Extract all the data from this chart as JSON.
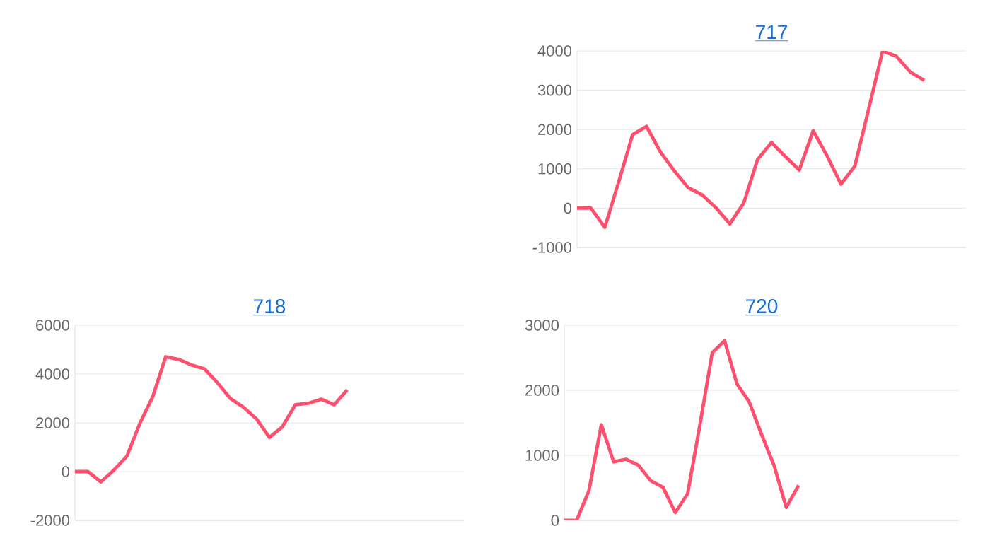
{
  "chart_data": [
    {
      "type": "line",
      "title": "717",
      "categories": [
        null,
        null,
        null,
        null,
        null,
        null,
        null,
        null,
        null,
        null,
        null,
        null,
        null,
        null,
        null,
        null,
        null,
        null,
        null,
        null,
        null,
        null,
        null,
        null,
        null,
        null,
        null,
        null,
        null
      ],
      "color": "#ff4f6e",
      "grid": "y",
      "tick_labels": "y",
      "ylim": [
        -1000,
        4000
      ],
      "yticks": [
        -1000,
        0,
        1000,
        2000,
        3000,
        4000
      ],
      "values": [
        0,
        0,
        -490,
        670,
        1870,
        2080,
        1430,
        950,
        520,
        340,
        10,
        -400,
        130,
        1240,
        1670,
        1310,
        970,
        1970,
        1330,
        610,
        1070,
        2530,
        4000,
        3860,
        3460,
        3250,
        null,
        null,
        null
      ]
    },
    {
      "type": "line",
      "title": "718",
      "categories": [
        null,
        null,
        null,
        null,
        null,
        null,
        null,
        null,
        null,
        null,
        null,
        null,
        null,
        null,
        null,
        null,
        null,
        null,
        null,
        null,
        null,
        null,
        null,
        null,
        null,
        null,
        null,
        null,
        null,
        null,
        null
      ],
      "color": "#ff4f6e",
      "grid": "y",
      "tick_labels": "y",
      "ylim": [
        -2000,
        6000
      ],
      "yticks": [
        -2000,
        0,
        2000,
        4000,
        6000
      ],
      "values": [
        0,
        0,
        -420,
        60,
        630,
        1970,
        3070,
        4710,
        4600,
        4370,
        4210,
        3640,
        2990,
        2640,
        2160,
        1400,
        1840,
        2740,
        2800,
        2970,
        2740,
        3350,
        null,
        null,
        null,
        null,
        null,
        null,
        null,
        null,
        null
      ]
    },
    {
      "type": "line",
      "title": "720",
      "categories": [
        null,
        null,
        null,
        null,
        null,
        null,
        null,
        null,
        null,
        null,
        null,
        null,
        null,
        null,
        null,
        null,
        null,
        null,
        null,
        null,
        null,
        null,
        null,
        null,
        null,
        null,
        null,
        null,
        null,
        null,
        null,
        null,
        null
      ],
      "color": "#ff4f6e",
      "grid": "y",
      "tick_labels": "y",
      "ylim": [
        0,
        3000
      ],
      "yticks": [
        0,
        1000,
        2000,
        3000
      ],
      "values": [
        0,
        0,
        460,
        1470,
        900,
        940,
        850,
        610,
        510,
        120,
        410,
        1470,
        2580,
        2760,
        2100,
        1820,
        1320,
        850,
        200,
        540,
        null,
        null,
        null,
        null,
        null,
        null,
        null,
        null,
        null,
        null,
        null,
        null,
        null
      ]
    }
  ]
}
